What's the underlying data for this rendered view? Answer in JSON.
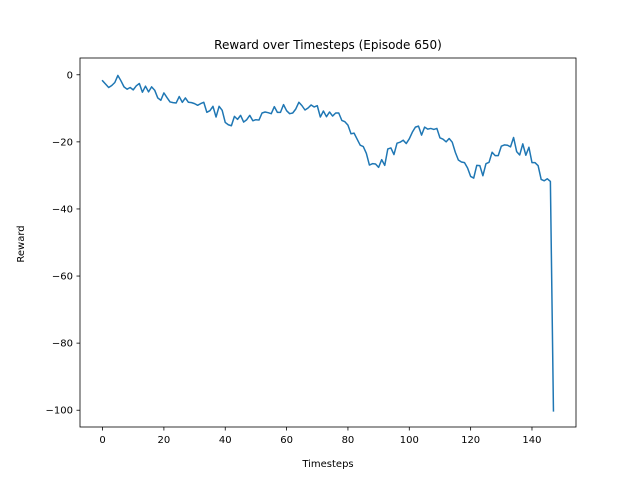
{
  "chart_data": {
    "type": "line",
    "title": "Reward over Timesteps (Episode 650)",
    "xlabel": "Timesteps",
    "ylabel": "Reward",
    "xlim": [
      -7.35,
      154.35
    ],
    "ylim": [
      -105.0,
      5.0
    ],
    "xticks": [
      0,
      20,
      40,
      60,
      80,
      100,
      120,
      140
    ],
    "yticks": [
      0,
      -20,
      -40,
      -60,
      -80,
      -100
    ],
    "ytick_labels": [
      "0",
      "−20",
      "−40",
      "−60",
      "−80",
      "−100"
    ],
    "grid": false,
    "legend": "none",
    "colors": {
      "line": "#1f77b4",
      "axes": "#000000",
      "background": "#ffffff"
    },
    "series": [
      {
        "values": [
          -1.8,
          -2.8,
          -3.8,
          -3.2,
          -2.3,
          -0.2,
          -1.8,
          -3.6,
          -4.3,
          -3.8,
          -4.5,
          -3.3,
          -2.6,
          -5.2,
          -3.4,
          -5.1,
          -3.6,
          -4.6,
          -6.9,
          -7.6,
          -5.4,
          -6.8,
          -8.1,
          -8.3,
          -8.4,
          -6.5,
          -8.2,
          -6.9,
          -8.2,
          -8.3,
          -8.6,
          -9.1,
          -8.6,
          -8.2,
          -11.2,
          -10.7,
          -9.4,
          -12.6,
          -9.4,
          -10.6,
          -14.2,
          -14.9,
          -15.2,
          -12.4,
          -13.3,
          -12.1,
          -14.1,
          -13.4,
          -12.1,
          -13.7,
          -13.4,
          -13.5,
          -11.4,
          -11.1,
          -11.3,
          -11.6,
          -9.5,
          -11.2,
          -11.2,
          -8.9,
          -10.7,
          -11.6,
          -11.4,
          -10.2,
          -8.2,
          -9.2,
          -10.5,
          -9.9,
          -9.0,
          -9.6,
          -9.2,
          -12.6,
          -10.8,
          -12.5,
          -11.1,
          -12.3,
          -11.4,
          -11.4,
          -13.6,
          -14.0,
          -15.0,
          -17.6,
          -17.4,
          -19.2,
          -21.0,
          -21.4,
          -23.4,
          -26.9,
          -26.5,
          -26.6,
          -27.6,
          -25.3,
          -27.0,
          -22.1,
          -21.8,
          -23.8,
          -20.4,
          -20.1,
          -19.5,
          -20.5,
          -19.1,
          -17.1,
          -15.6,
          -15.3,
          -18.0,
          -15.6,
          -16.2,
          -16.0,
          -16.3,
          -16.0,
          -18.8,
          -19.2,
          -20.0,
          -19.0,
          -20.1,
          -23.1,
          -25.4,
          -26.0,
          -26.2,
          -27.8,
          -30.3,
          -30.8,
          -27.0,
          -27.1,
          -30.1,
          -26.5,
          -26.1,
          -23.1,
          -24.1,
          -24.1,
          -21.3,
          -20.9,
          -21.0,
          -21.5,
          -18.7,
          -22.9,
          -23.9,
          -20.6,
          -24.0,
          -21.6,
          -26.2,
          -26.2,
          -27.1,
          -31.2,
          -31.6,
          -31.0,
          -31.8,
          -100.2
        ]
      }
    ]
  }
}
